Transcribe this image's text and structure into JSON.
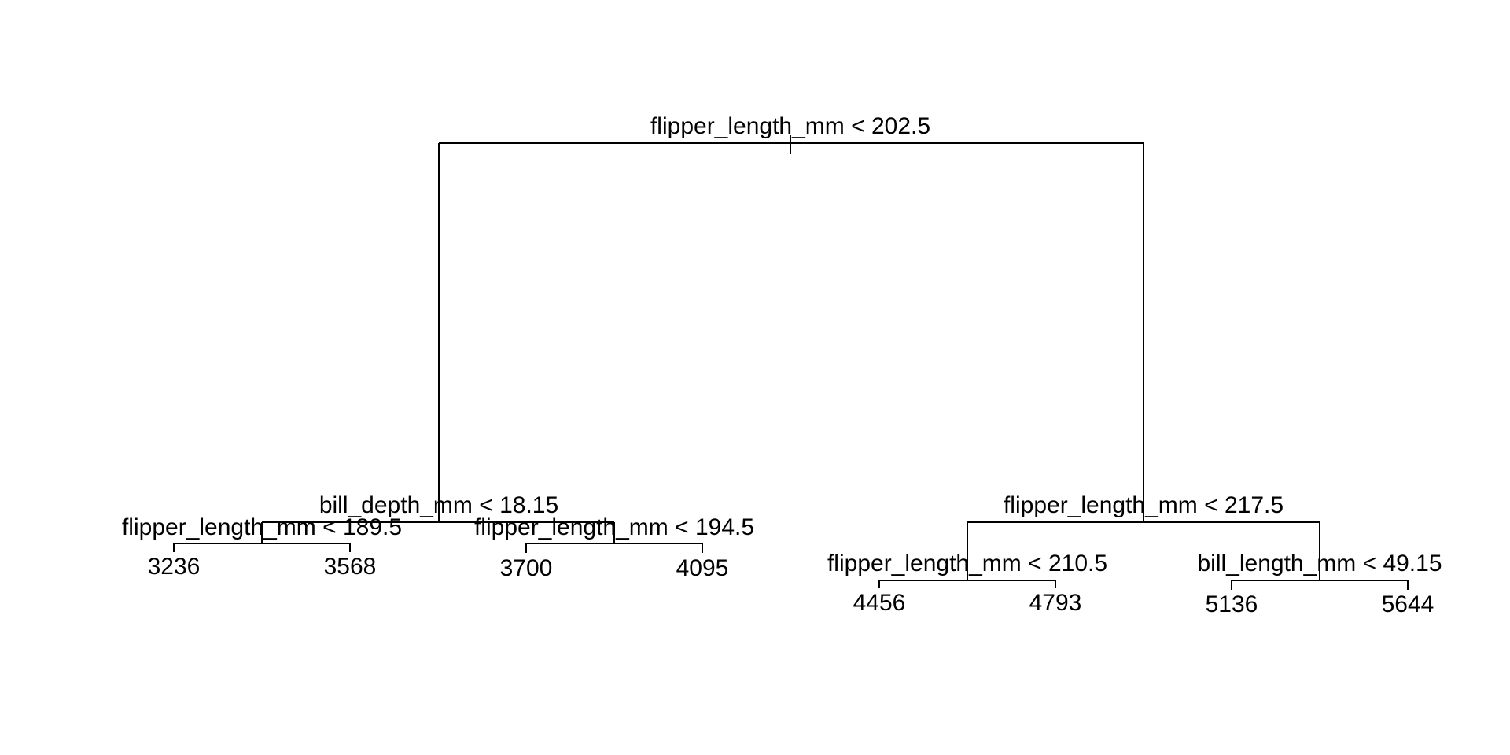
{
  "tree": {
    "root": {
      "split": "flipper_length_mm < 202.5",
      "left": {
        "split": "bill_depth_mm < 18.15",
        "left": {
          "split": "flipper_length_mm < 189.5",
          "left_leaf": "3236",
          "right_leaf": "3568"
        },
        "right": {
          "split": "flipper_length_mm < 194.5",
          "left_leaf": "3700",
          "right_leaf": "4095"
        }
      },
      "right": {
        "split": "flipper_length_mm < 217.5",
        "left": {
          "split": "flipper_length_mm < 210.5",
          "left_leaf": "4456",
          "right_leaf": "4793"
        },
        "right": {
          "split": "bill_length_mm < 49.15",
          "left_leaf": "5136",
          "right_leaf": "5644"
        }
      }
    }
  }
}
